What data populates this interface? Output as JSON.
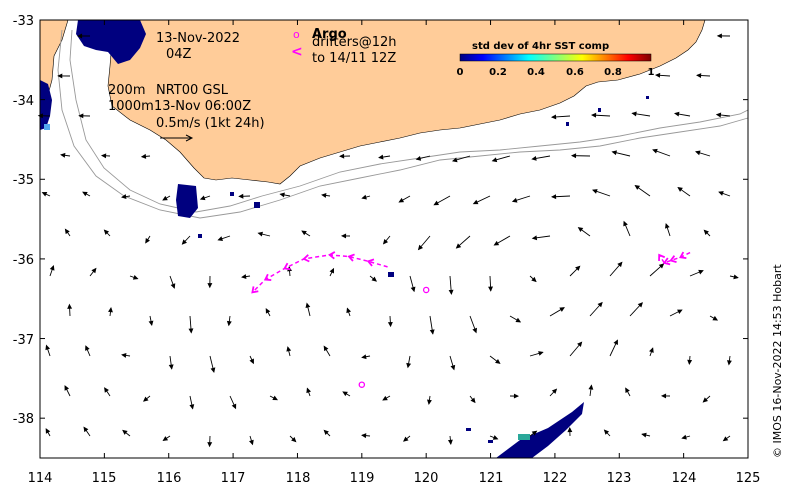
{
  "map": {
    "lon_ticks": [
      "114",
      "115",
      "116",
      "117",
      "118",
      "119",
      "120",
      "121",
      "122",
      "123",
      "124",
      "125"
    ],
    "lat_ticks": [
      "-33",
      "-34",
      "-35",
      "-36",
      "-37",
      "-38"
    ],
    "lon_range": [
      114,
      125
    ],
    "lat_range": [
      -38.5,
      -33
    ]
  },
  "annotations": {
    "date": "13-Nov-2022",
    "time": "04Z",
    "depth_200": "200m",
    "product": "NRT00 GSL",
    "depth_1000": "1000m",
    "analysis_time": "13-Nov 06:00Z",
    "scale_label": "0.5m/s (1kt 24h)"
  },
  "legend": {
    "argo_marker": "o",
    "argo_label": "Argo",
    "drifter_marker": "<",
    "drifter_line1": "drifters@12h",
    "drifter_line2": "to 14/11 12Z"
  },
  "colorbar": {
    "title": "std dev of 4hr SST comp",
    "ticks": [
      "0",
      "0.2",
      "0.4",
      "0.6",
      "0.8",
      "1"
    ]
  },
  "credit": "© IMOS 16-Nov-2022 14:53 Hobart",
  "colors": {
    "land": "#ffcc99",
    "drifter": "#ff00ff",
    "argo": "#ff00ff",
    "sst_low": "#00007f",
    "isobath": "#999999"
  },
  "argo_floats": [
    {
      "lon": 120.0,
      "lat": -36.39
    },
    {
      "lon": 119.0,
      "lat": -37.58
    }
  ],
  "drifter_tracks": [
    [
      [
        119.4,
        -36.1
      ],
      [
        119.1,
        -36.03
      ],
      [
        118.8,
        -35.97
      ],
      [
        118.5,
        -35.95
      ],
      [
        118.1,
        -36.0
      ],
      [
        117.8,
        -36.12
      ],
      [
        117.5,
        -36.26
      ],
      [
        117.3,
        -36.42
      ]
    ],
    [
      [
        124.1,
        -35.92
      ],
      [
        123.95,
        -35.98
      ],
      [
        123.8,
        -36.02
      ],
      [
        123.7,
        -36.05
      ],
      [
        123.62,
        -35.95
      ]
    ]
  ]
}
